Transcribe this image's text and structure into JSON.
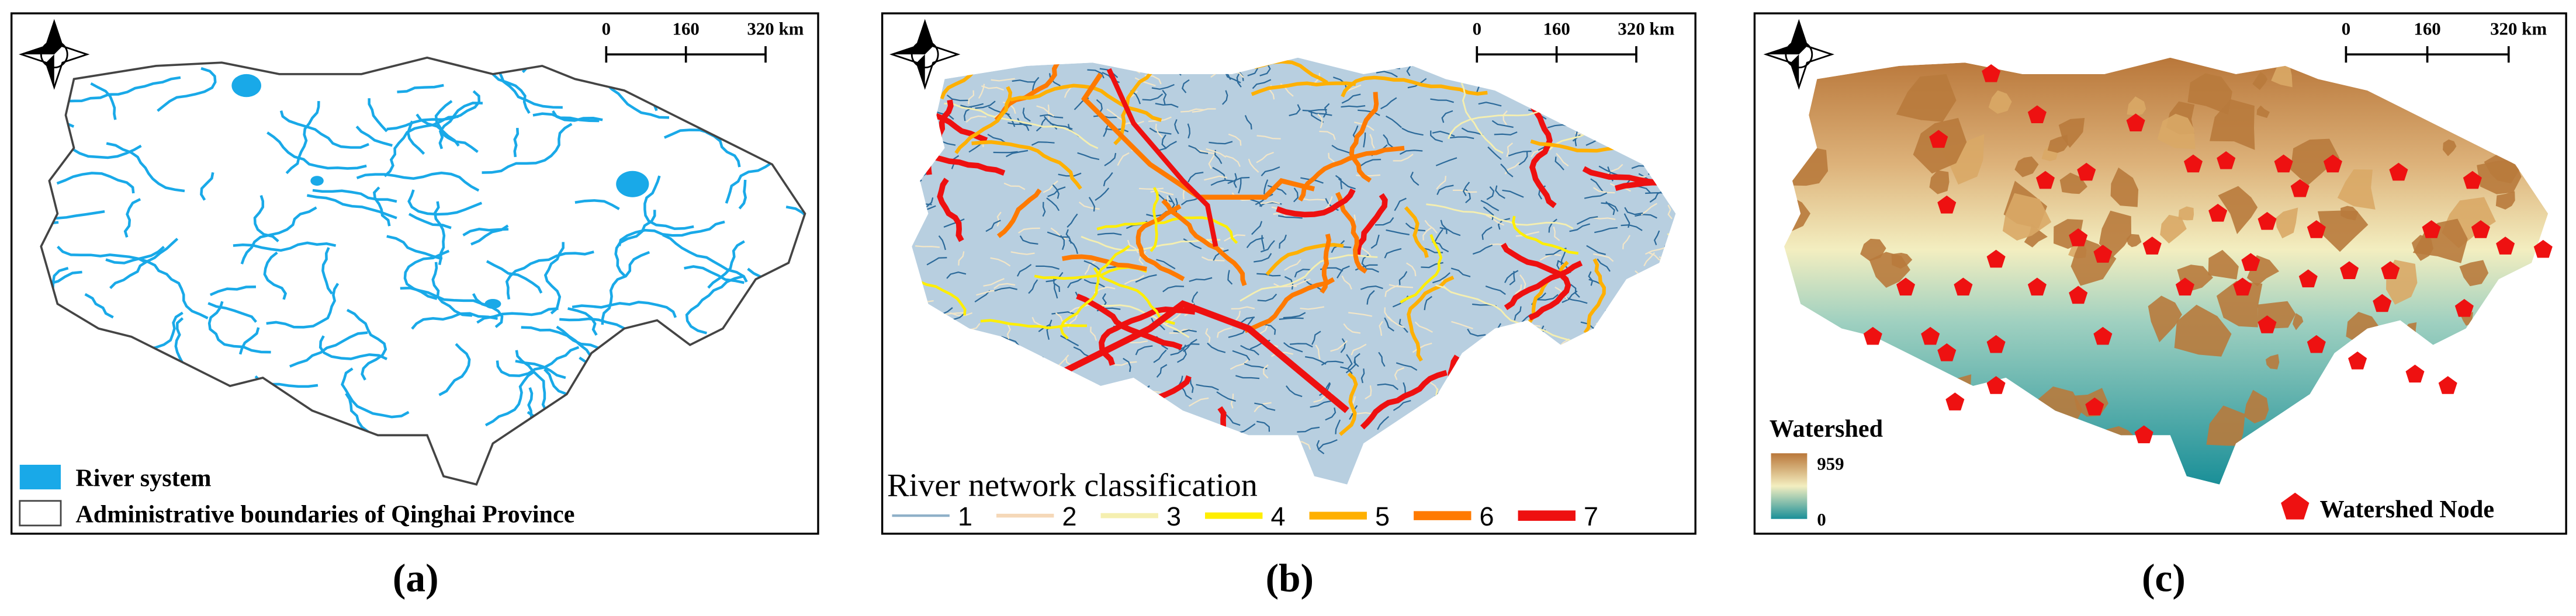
{
  "panels": [
    {
      "scale_bar": [
        "0",
        "160",
        "320 km"
      ],
      "legend": [
        "River system",
        "Administrative boundaries of Qinghai Province"
      ],
      "caption": "(a)"
    },
    {
      "scale_bar": [
        "0",
        "160",
        "320 km"
      ],
      "legend_title": "River network classification",
      "legend": [
        "1",
        "2",
        "3",
        "4",
        "5",
        "6",
        "7"
      ],
      "caption": "(b)"
    },
    {
      "scale_bar": [
        "0",
        "160",
        "320 km"
      ],
      "legend_title": "Watershed",
      "legend_range": [
        "959",
        "0"
      ],
      "legend": [
        "Watershed Node"
      ],
      "caption": "(c)"
    }
  ]
}
